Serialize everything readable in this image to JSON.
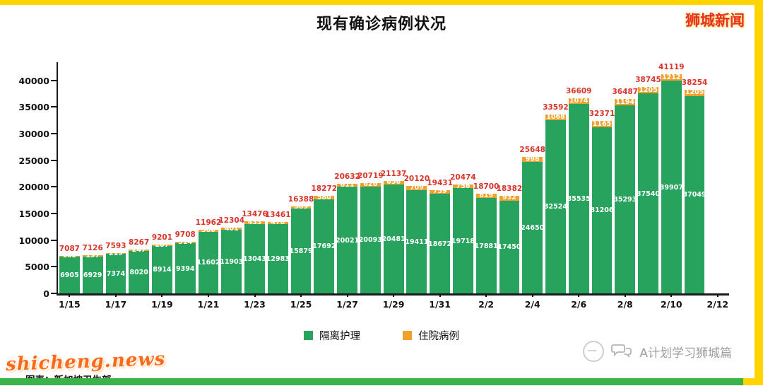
{
  "header": {
    "title": "现有确诊病例状况",
    "brand": "狮城新闻"
  },
  "chart_data": {
    "type": "bar",
    "stacked": true,
    "title": "现有确诊病例状况",
    "categories": [
      "1/15",
      "1/16",
      "1/17",
      "1/18",
      "1/19",
      "1/20",
      "1/21",
      "1/22",
      "1/23",
      "1/24",
      "1/25",
      "1/26",
      "1/27",
      "1/28",
      "1/29",
      "1/30",
      "1/31",
      "2/1",
      "2/2",
      "2/3",
      "2/4",
      "2/5",
      "2/6",
      "2/7",
      "2/8",
      "2/9",
      "2/10",
      "2/11"
    ],
    "series": [
      {
        "name": "隔离护理",
        "color": "#27a35d",
        "values": [
          6905,
          6929,
          7374,
          8020,
          8914,
          9394,
          11602,
          11903,
          13043,
          12983,
          15879,
          17692,
          20021,
          20093,
          20481,
          19411,
          18672,
          19718,
          17881,
          17450,
          24650,
          32524,
          35535,
          31206,
          35293,
          37540,
          39907,
          37049
        ]
      },
      {
        "name": "住院病例",
        "color": "#f0a12c",
        "values": [
          182,
          197,
          219,
          247,
          287,
          314,
          360,
          401,
          433,
          478,
          509,
          580,
          611,
          626,
          656,
          709,
          759,
          756,
          819,
          932,
          998,
          1068,
          1074,
          1165,
          1194,
          1205,
          1212,
          1205
        ]
      }
    ],
    "totals": [
      7087,
      7126,
      7593,
      8267,
      9201,
      9708,
      11962,
      12304,
      13476,
      13461,
      16388,
      18272,
      20632,
      20719,
      21137,
      20120,
      19431,
      20474,
      18700,
      18382,
      25648,
      33592,
      36609,
      32371,
      36487,
      38745,
      41119,
      38254
    ],
    "x_ticks": [
      "1/15",
      "1/17",
      "1/19",
      "1/21",
      "1/23",
      "1/25",
      "1/27",
      "1/29",
      "1/31",
      "2/2",
      "2/4",
      "2/6",
      "2/8",
      "2/10",
      "2/12"
    ],
    "yticks": [
      0,
      5000,
      10000,
      15000,
      20000,
      25000,
      30000,
      35000,
      40000
    ],
    "ylim": [
      0,
      40000
    ],
    "grid": false,
    "legend_position": "bottom",
    "colors": {
      "total_label": "#d8352b",
      "inside_label": "#ffffff"
    }
  },
  "footer": {
    "watermark": "shicheng.news",
    "caption": "图表：新加坡卫生部",
    "credit": "A计划学习狮城篇"
  },
  "frame_colors": {
    "top": "#ffd400",
    "right": "#ffd400",
    "bottom": "#3bb24a"
  }
}
